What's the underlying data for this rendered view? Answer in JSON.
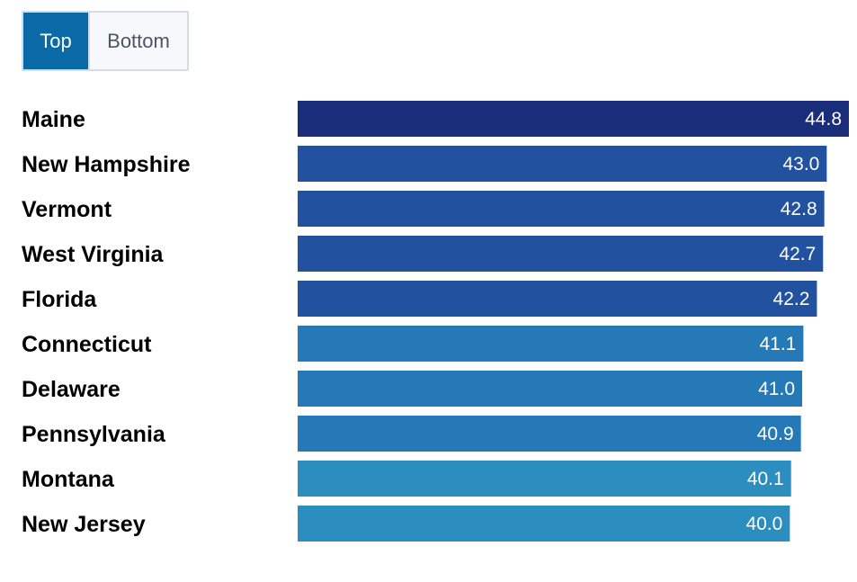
{
  "toggle": {
    "top_label": "Top",
    "bottom_label": "Bottom",
    "active": "Top"
  },
  "colors": {
    "active_button": "#0a6aa8",
    "tier_44": "#1a2d7a",
    "tier_42": "#2251a0",
    "tier_41": "#2479b6",
    "tier_40": "#2b8ebf"
  },
  "chart_data": {
    "type": "bar",
    "orientation": "horizontal",
    "categories": [
      "Maine",
      "New Hampshire",
      "Vermont",
      "West Virginia",
      "Florida",
      "Connecticut",
      "Delaware",
      "Pennsylvania",
      "Montana",
      "New Jersey"
    ],
    "values": [
      44.8,
      43.0,
      42.8,
      42.7,
      42.2,
      41.1,
      41.0,
      40.9,
      40.1,
      40.0
    ],
    "value_labels": [
      "44.8",
      "43.0",
      "42.8",
      "42.7",
      "42.2",
      "41.1",
      "41.0",
      "40.9",
      "40.1",
      "40.0"
    ],
    "title": "",
    "xlabel": "",
    "ylabel": "",
    "grid": false,
    "legend": "none"
  }
}
